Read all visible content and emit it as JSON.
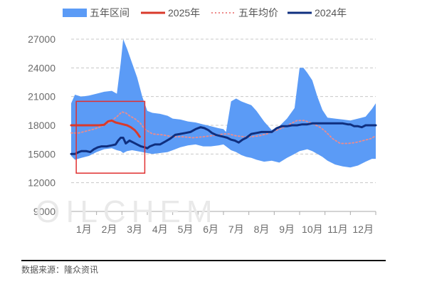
{
  "watermark": "OILCHEM",
  "source_note": "数据来源：隆众资讯",
  "colors": {
    "range_fill": "#5b9bf6",
    "series_2025": "#d93a2b",
    "avg_line": "#ee8b8b",
    "series_2024": "#0f2f7f",
    "highlight_box": "#e03030",
    "grid": "#c8c8c8",
    "axis": "#aaaaaa"
  },
  "chart_data": {
    "type": "area",
    "x_categories": [
      "1月",
      "2月",
      "3月",
      "4月",
      "5月",
      "6月",
      "7月",
      "8月",
      "9月",
      "10月",
      "11月",
      "12月"
    ],
    "xlim": [
      1,
      13
    ],
    "ylim": [
      9000,
      27000
    ],
    "y_ticks": [
      9000,
      12000,
      15000,
      18000,
      21000,
      24000,
      27000
    ],
    "grid": "horizontal dashed",
    "legend_position": "top",
    "legend": [
      {
        "name": "五年区间",
        "style": "band",
        "color": "#5b9bf6"
      },
      {
        "name": "2025年",
        "style": "line",
        "color": "#d93a2b"
      },
      {
        "name": "五年均价",
        "style": "dotted",
        "color": "#ee8b8b"
      },
      {
        "name": "2024年",
        "style": "line",
        "color": "#0f2f7f"
      }
    ],
    "band": {
      "name": "五年区间",
      "x": [
        1.0,
        1.15,
        1.4,
        1.7,
        2.0,
        2.3,
        2.6,
        2.8,
        2.95,
        3.05,
        3.2,
        3.4,
        3.6,
        3.8,
        4.0,
        4.2,
        4.5,
        4.8,
        5.0,
        5.3,
        5.6,
        5.9,
        6.2,
        6.5,
        6.8,
        7.0,
        7.1,
        7.3,
        7.5,
        7.7,
        7.9,
        8.1,
        8.3,
        8.6,
        8.9,
        9.2,
        9.5,
        9.8,
        10.0,
        10.15,
        10.3,
        10.5,
        10.7,
        10.9,
        11.1,
        11.4,
        11.7,
        12.0,
        12.3,
        12.6,
        12.85,
        13.0
      ],
      "upper": [
        20300,
        21200,
        21000,
        21100,
        21300,
        21500,
        21600,
        21300,
        24500,
        27000,
        26000,
        24500,
        23000,
        21000,
        19500,
        19300,
        19200,
        19000,
        18700,
        18600,
        18400,
        18300,
        18100,
        17900,
        17700,
        17600,
        17300,
        20500,
        20800,
        20500,
        20300,
        20100,
        19500,
        18400,
        17500,
        17900,
        18700,
        19800,
        24000,
        24000,
        23500,
        22700,
        21000,
        19600,
        18800,
        18700,
        18600,
        18500,
        18700,
        18900,
        19700,
        20300
      ],
      "lower": [
        14800,
        14400,
        14600,
        14800,
        15200,
        15500,
        15600,
        15400,
        15300,
        15100,
        15300,
        15400,
        15300,
        15200,
        15100,
        15000,
        15100,
        15200,
        15400,
        15700,
        15900,
        16000,
        15800,
        15800,
        15900,
        16000,
        15800,
        15400,
        15200,
        14900,
        14700,
        14600,
        14400,
        14200,
        14300,
        14100,
        14600,
        15000,
        15300,
        15400,
        15500,
        15300,
        15000,
        14700,
        14300,
        13900,
        13700,
        13600,
        13800,
        14200,
        14500,
        14500
      ]
    },
    "series": [
      {
        "name": "2025年",
        "x": [
          1.0,
          1.3,
          1.6,
          1.9,
          2.1,
          2.3,
          2.45,
          2.6,
          2.75,
          2.9,
          3.05,
          3.2,
          3.35,
          3.5,
          3.6,
          3.7
        ],
        "y": [
          18000,
          18000,
          18000,
          18000,
          18000,
          18050,
          18400,
          18500,
          18300,
          18200,
          18100,
          18000,
          17800,
          17500,
          17200,
          16800
        ]
      },
      {
        "name": "五年均价",
        "x": [
          1.0,
          1.3,
          1.6,
          1.9,
          2.2,
          2.5,
          2.8,
          3.0,
          3.15,
          3.3,
          3.5,
          3.7,
          3.9,
          4.2,
          4.6,
          5.0,
          5.4,
          5.8,
          6.2,
          6.5,
          6.8,
          7.0,
          7.2,
          7.5,
          7.8,
          8.1,
          8.4,
          8.7,
          9.0,
          9.3,
          9.6,
          9.9,
          10.2,
          10.5,
          10.8,
          11.0,
          11.3,
          11.6,
          11.9,
          12.2,
          12.5,
          12.8,
          13.0
        ],
        "y": [
          17200,
          17200,
          17400,
          17600,
          17900,
          18300,
          18900,
          19400,
          19300,
          19000,
          18700,
          18300,
          17600,
          17100,
          17000,
          16800,
          16800,
          16700,
          16800,
          16900,
          17000,
          17100,
          17100,
          16900,
          16800,
          16800,
          16900,
          17100,
          17400,
          17700,
          18100,
          18500,
          18500,
          18200,
          17800,
          17400,
          16600,
          16100,
          16100,
          16200,
          16400,
          16600,
          16900
        ]
      },
      {
        "name": "2024年",
        "x": [
          1.0,
          1.15,
          1.3,
          1.4,
          1.6,
          1.75,
          1.9,
          2.05,
          2.2,
          2.4,
          2.6,
          2.75,
          2.85,
          2.95,
          3.05,
          3.15,
          3.3,
          3.45,
          3.6,
          3.75,
          3.9,
          4.0,
          4.1,
          4.3,
          4.5,
          4.7,
          4.9,
          5.1,
          5.3,
          5.5,
          5.7,
          5.9,
          6.1,
          6.25,
          6.4,
          6.55,
          6.7,
          6.85,
          7.0,
          7.15,
          7.3,
          7.45,
          7.6,
          7.75,
          7.9,
          8.1,
          8.3,
          8.5,
          8.7,
          8.9,
          9.1,
          9.3,
          9.5,
          9.7,
          9.9,
          10.1,
          10.3,
          10.5,
          10.7,
          10.9,
          11.1,
          11.3,
          11.5,
          11.7,
          11.9,
          12.0,
          12.15,
          12.3,
          12.45,
          12.6,
          12.75,
          12.9,
          13.0
        ],
        "y": [
          15000,
          15000,
          15200,
          15300,
          15300,
          15200,
          15500,
          15700,
          15800,
          15800,
          15900,
          16000,
          16400,
          16700,
          16700,
          16100,
          16400,
          16200,
          16000,
          15800,
          15700,
          15600,
          15800,
          16000,
          16000,
          16300,
          16600,
          17000,
          17100,
          17200,
          17300,
          17600,
          17800,
          17700,
          17500,
          17200,
          17000,
          16900,
          16800,
          16700,
          16500,
          16400,
          16200,
          16500,
          16700,
          17100,
          17200,
          17300,
          17300,
          17300,
          17700,
          17900,
          17900,
          18000,
          18000,
          18100,
          18100,
          18200,
          18200,
          18200,
          18200,
          18200,
          18200,
          18200,
          18100,
          18100,
          17900,
          17900,
          17800,
          18000,
          18000,
          18000,
          18000
        ]
      }
    ],
    "highlight_box": {
      "x_range": [
        1.2,
        3.9
      ],
      "y_range": [
        13000,
        20500
      ]
    }
  }
}
